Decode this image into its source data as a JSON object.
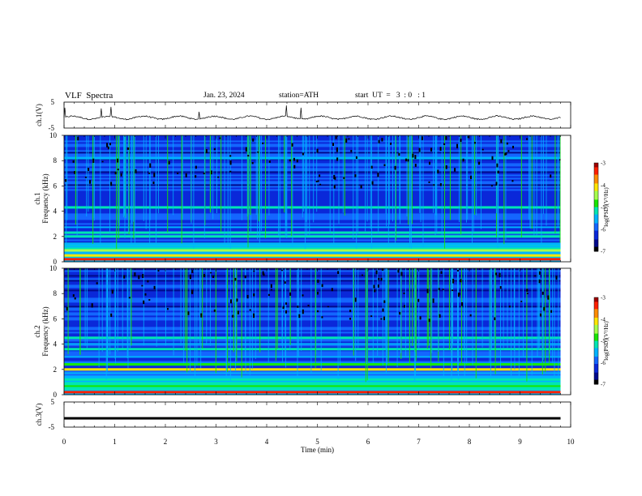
{
  "header": {
    "title": "VLF  Spectra",
    "date": "Jan. 23, 2024",
    "station": "station=ATH",
    "start": "start  UT  =   3  : 0   : 1"
  },
  "colors": {
    "colormap": [
      "#ffffff",
      "#a00000",
      "#ff2000",
      "#ff8c00",
      "#ffe600",
      "#a6ff4d",
      "#19e600",
      "#00e6b3",
      "#00b3ff",
      "#1466ff",
      "#0a28d9",
      "#000a8c",
      "#000000"
    ],
    "trace": "#000000"
  },
  "chart_data": [
    {
      "type": "line",
      "name": "ch.1(V)",
      "ylabel": "ch.1(V)",
      "y_ticks": [
        "5",
        "-5"
      ],
      "ylim": [
        -5,
        5
      ],
      "x_range_min": [
        0,
        9.8
      ],
      "description_values": "noisy trace around about -1 V with small spikes",
      "mean_value": -1
    },
    {
      "type": "heatmap",
      "name": "ch.1",
      "ylabel": "ch.1 Frequency (kHz)",
      "y_ticks": [
        "0",
        "2",
        "4",
        "6",
        "8",
        "10"
      ],
      "ylim": [
        0,
        10
      ],
      "x_range_min": [
        0,
        9.8
      ],
      "colorbar": {
        "label": "log(PSD)(V²/Hz)",
        "ticks": [
          "-3",
          "-4",
          "-5",
          "-6",
          "-7"
        ],
        "range": [
          -7,
          -3
        ]
      },
      "bands_khz": [
        {
          "f": 0.2,
          "level": -3.3
        },
        {
          "f": 0.5,
          "level": -4.0
        },
        {
          "f": 0.9,
          "level": -4.4
        },
        {
          "f": 1.4,
          "level": -5.7
        },
        {
          "f": 2.0,
          "level": -5.0
        },
        {
          "f": 2.3,
          "level": -5.2
        },
        {
          "f": 4.3,
          "level": -5.3
        },
        {
          "f": 8.2,
          "level": -5.5
        }
      ]
    },
    {
      "type": "heatmap",
      "name": "ch.2",
      "ylabel": "ch.2 Frequency (kHz)",
      "y_ticks": [
        "0",
        "2",
        "4",
        "6",
        "8",
        "10"
      ],
      "ylim": [
        0,
        10
      ],
      "x_range_min": [
        0,
        9.8
      ],
      "colorbar": {
        "label": "log(PSD)(V²/Hz)",
        "ticks": [
          "-3",
          "-4",
          "-5",
          "-6",
          "-7"
        ],
        "range": [
          -7,
          -3
        ]
      },
      "bands_khz": [
        {
          "f": 0.2,
          "level": -3.3
        },
        {
          "f": 1.2,
          "level": -5.0
        },
        {
          "f": 2.0,
          "level": -4.1
        },
        {
          "f": 2.4,
          "level": -4.8
        },
        {
          "f": 3.6,
          "level": -5.0
        },
        {
          "f": 4.5,
          "level": -5.3
        }
      ]
    },
    {
      "type": "line",
      "name": "ch.3(V)",
      "ylabel": "ch.3(V)",
      "y_ticks": [
        "5",
        "-5"
      ],
      "ylim": [
        -5,
        5
      ],
      "x_range_min": [
        0,
        9.8
      ],
      "mean_value": -1.5
    }
  ],
  "x_axis": {
    "label": "Time (min)",
    "ticks": [
      "0",
      "1",
      "2",
      "3",
      "4",
      "5",
      "6",
      "7",
      "8",
      "9",
      "10"
    ],
    "range": [
      0,
      10
    ]
  }
}
